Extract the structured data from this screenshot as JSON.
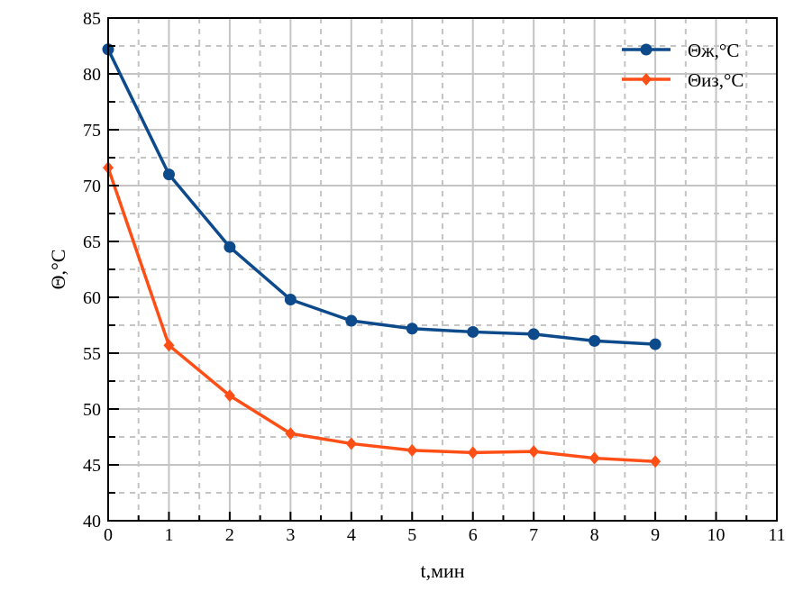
{
  "chart_data": {
    "type": "line",
    "title": "",
    "xlabel": "t,мин",
    "ylabel": "Θ,°C",
    "xlim": [
      0,
      11
    ],
    "ylim": [
      40,
      85
    ],
    "xticks": [
      "0",
      "1",
      "2",
      "3",
      "4",
      "5",
      "6",
      "7",
      "8",
      "9",
      "10",
      "11"
    ],
    "yticks": [
      "40",
      "45",
      "50",
      "55",
      "60",
      "65",
      "70",
      "75",
      "80",
      "85"
    ],
    "grid": true,
    "legend_position": "top-right",
    "x": [
      0,
      1,
      2,
      3,
      4,
      5,
      6,
      7,
      8,
      9
    ],
    "series": [
      {
        "name": "Θж,°C",
        "color": "#0d4a8c",
        "marker": "circle",
        "values": [
          82.2,
          71.0,
          64.5,
          59.8,
          57.9,
          57.2,
          56.9,
          56.7,
          56.1,
          55.8
        ]
      },
      {
        "name": "Θиз,°C",
        "color": "#ff4f17",
        "marker": "diamond",
        "values": [
          71.6,
          55.7,
          51.2,
          47.8,
          46.9,
          46.3,
          46.1,
          46.2,
          45.6,
          45.3
        ]
      }
    ]
  }
}
